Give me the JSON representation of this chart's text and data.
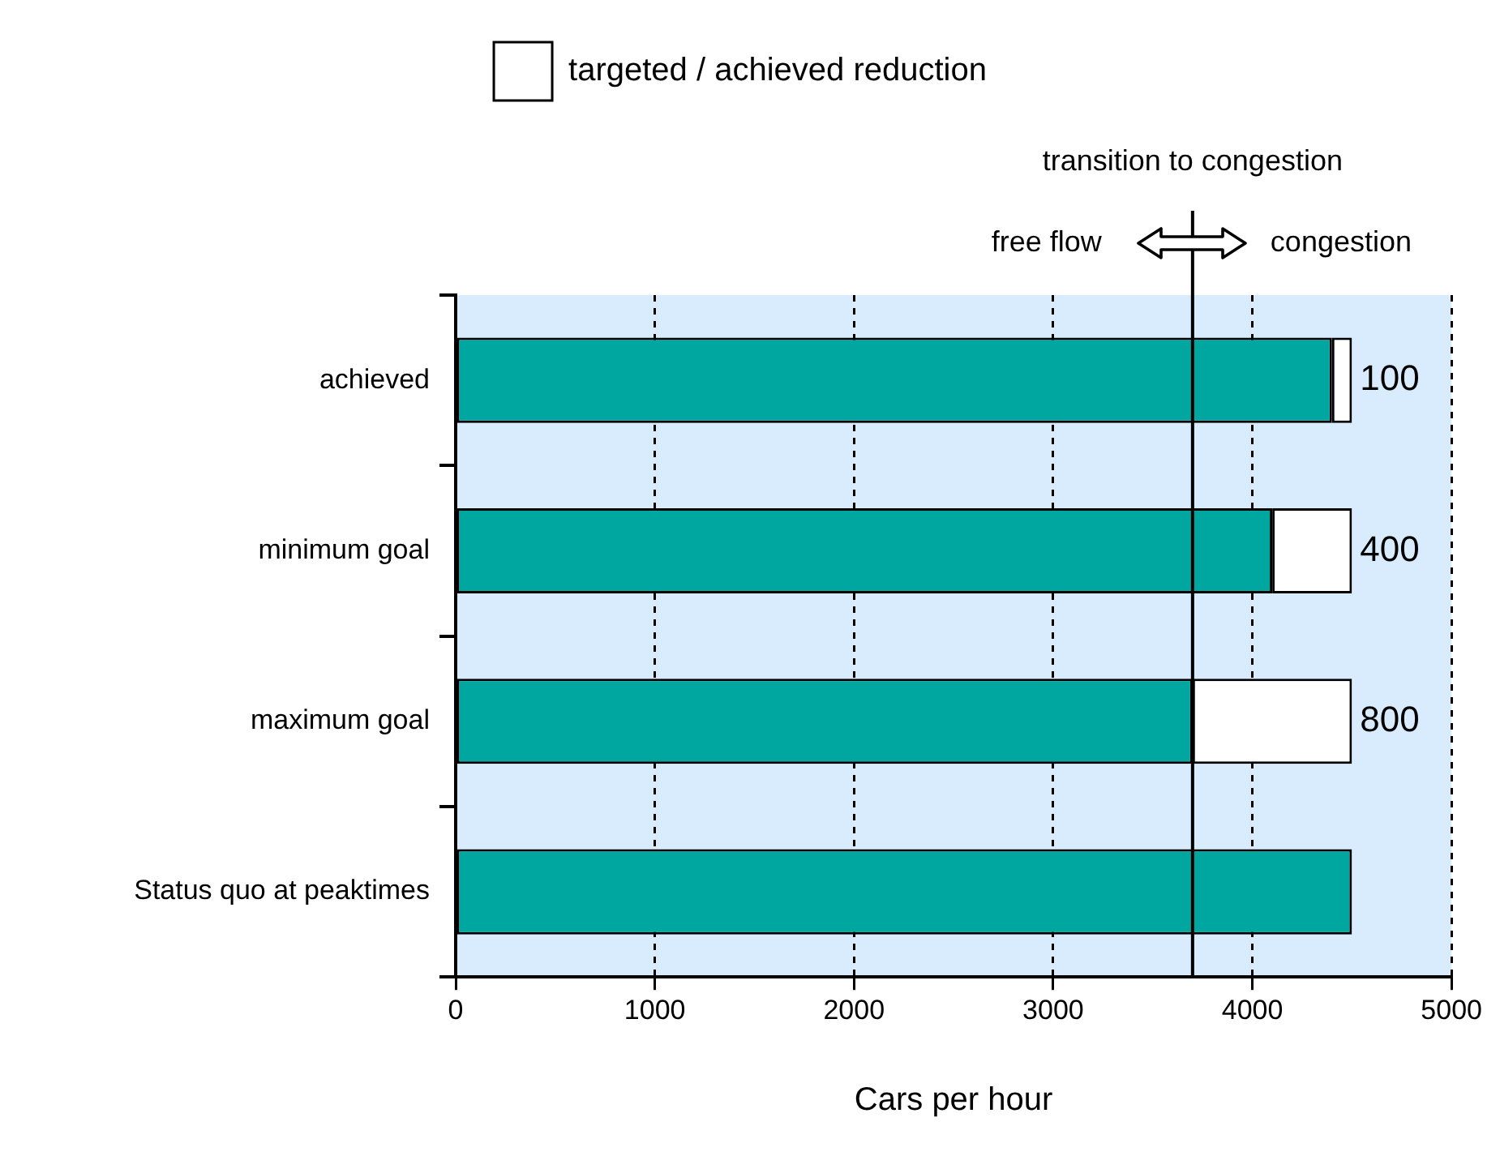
{
  "chart_data": {
    "type": "bar",
    "orientation": "horizontal",
    "stacked": true,
    "categories": [
      "achieved",
      "minimum goal",
      "maximum goal",
      "Status quo at peaktimes"
    ],
    "series": [
      {
        "color": "#00a6a0",
        "values": [
          4400,
          4100,
          3700,
          4500
        ]
      },
      {
        "name": "targeted / achieved reduction",
        "color": "#ffffff",
        "values": [
          100,
          400,
          800,
          0
        ],
        "value_labels": [
          "100",
          "400",
          "800",
          null
        ]
      }
    ],
    "xlim": [
      0,
      5000
    ],
    "xticks": [
      0,
      1000,
      2000,
      3000,
      4000,
      5000
    ],
    "xlabel": "Cars per hour",
    "grid": "x",
    "legend": "top",
    "ref_lines": [
      {
        "axis": "x",
        "value": 3700,
        "label": "transition to congestion"
      }
    ],
    "annotations": [
      "free flow",
      "congestion"
    ]
  }
}
